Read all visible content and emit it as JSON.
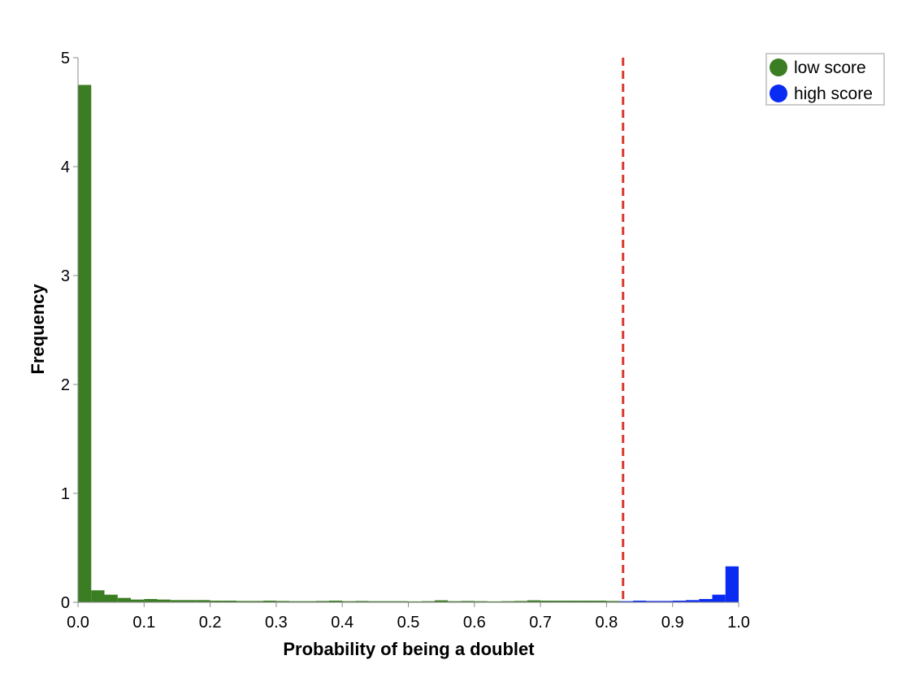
{
  "chart_data": {
    "type": "bar",
    "title": "",
    "xlabel": "Probability of being a doublet",
    "ylabel": "Frequency",
    "xlim": [
      0,
      1
    ],
    "ylim": [
      0,
      5
    ],
    "grid": false,
    "legend_position": "top-right",
    "x_ticks": [
      "0.0",
      "0.1",
      "0.2",
      "0.3",
      "0.4",
      "0.5",
      "0.6",
      "0.7",
      "0.8",
      "0.9",
      "1.0"
    ],
    "y_ticks": [
      "0",
      "1",
      "2",
      "3",
      "4",
      "5"
    ],
    "threshold": {
      "x": 0.825,
      "color": "#d93a2f",
      "style": "dashed"
    },
    "bin_width": 0.02,
    "series": [
      {
        "name": "low score",
        "color": "#3a7d22",
        "bins": [
          {
            "x0": 0.0,
            "y": 4.75
          },
          {
            "x0": 0.02,
            "y": 0.11
          },
          {
            "x0": 0.04,
            "y": 0.07
          },
          {
            "x0": 0.06,
            "y": 0.04
          },
          {
            "x0": 0.08,
            "y": 0.025
          },
          {
            "x0": 0.1,
            "y": 0.03
          },
          {
            "x0": 0.12,
            "y": 0.025
          },
          {
            "x0": 0.14,
            "y": 0.02
          },
          {
            "x0": 0.16,
            "y": 0.02
          },
          {
            "x0": 0.18,
            "y": 0.02
          },
          {
            "x0": 0.2,
            "y": 0.015
          },
          {
            "x0": 0.22,
            "y": 0.015
          },
          {
            "x0": 0.24,
            "y": 0.012
          },
          {
            "x0": 0.26,
            "y": 0.012
          },
          {
            "x0": 0.28,
            "y": 0.015
          },
          {
            "x0": 0.3,
            "y": 0.012
          },
          {
            "x0": 0.32,
            "y": 0.01
          },
          {
            "x0": 0.34,
            "y": 0.01
          },
          {
            "x0": 0.36,
            "y": 0.012
          },
          {
            "x0": 0.38,
            "y": 0.015
          },
          {
            "x0": 0.4,
            "y": 0.01
          },
          {
            "x0": 0.42,
            "y": 0.012
          },
          {
            "x0": 0.44,
            "y": 0.01
          },
          {
            "x0": 0.46,
            "y": 0.01
          },
          {
            "x0": 0.48,
            "y": 0.01
          },
          {
            "x0": 0.5,
            "y": 0.008
          },
          {
            "x0": 0.52,
            "y": 0.01
          },
          {
            "x0": 0.54,
            "y": 0.018
          },
          {
            "x0": 0.56,
            "y": 0.01
          },
          {
            "x0": 0.58,
            "y": 0.012
          },
          {
            "x0": 0.6,
            "y": 0.01
          },
          {
            "x0": 0.62,
            "y": 0.008
          },
          {
            "x0": 0.64,
            "y": 0.01
          },
          {
            "x0": 0.66,
            "y": 0.012
          },
          {
            "x0": 0.68,
            "y": 0.018
          },
          {
            "x0": 0.7,
            "y": 0.015
          },
          {
            "x0": 0.72,
            "y": 0.015
          },
          {
            "x0": 0.74,
            "y": 0.015
          },
          {
            "x0": 0.76,
            "y": 0.015
          },
          {
            "x0": 0.78,
            "y": 0.015
          },
          {
            "x0": 0.8,
            "y": 0.012
          }
        ]
      },
      {
        "name": "high score",
        "color": "#0a2cf2",
        "bins": [
          {
            "x0": 0.82,
            "y": 0.01
          },
          {
            "x0": 0.84,
            "y": 0.015
          },
          {
            "x0": 0.86,
            "y": 0.012
          },
          {
            "x0": 0.88,
            "y": 0.012
          },
          {
            "x0": 0.9,
            "y": 0.015
          },
          {
            "x0": 0.92,
            "y": 0.02
          },
          {
            "x0": 0.94,
            "y": 0.03
          },
          {
            "x0": 0.96,
            "y": 0.07
          },
          {
            "x0": 0.98,
            "y": 0.33
          }
        ]
      }
    ]
  }
}
